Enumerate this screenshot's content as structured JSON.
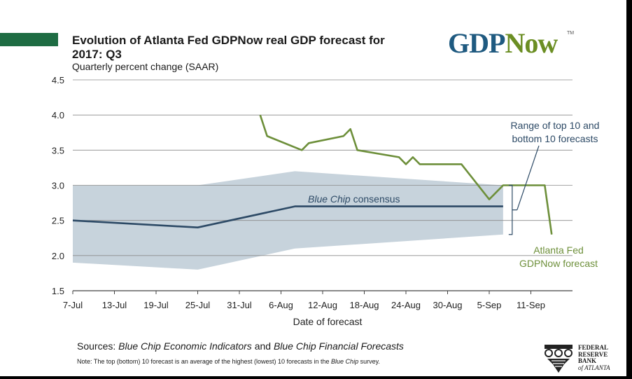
{
  "title": "Evolution of Atlanta Fed GDPNow real GDP forecast for 2017: Q3",
  "subtitle": "Quarterly percent change (SAAR)",
  "logo": {
    "gdp": "GDP",
    "now": "Now",
    "tm": "TM"
  },
  "sources": {
    "prefix": "Sources:",
    "source1": "Blue Chip Economic Indicators",
    "and": "and",
    "source2": "Blue Chip Financial Forecasts"
  },
  "note": {
    "prefix": "Note:  The top (bottom) 10 forecast is an average of the highest (lowest) 10 forecasts in the",
    "italic": "Blue Chip",
    "suffix": "survey."
  },
  "fed_logo": {
    "lines": [
      "FEDERAL",
      "RESERVE",
      "BANK",
      "of ATLANTA"
    ],
    "icon": "eagle-seal-icon"
  },
  "colors": {
    "gdpnow": "#6d8f3a",
    "bluechip": "#2d4a66",
    "range": "#c7d3dc",
    "grid": "#8a8a8a",
    "band": "#1e6c43"
  },
  "chart_data": {
    "type": "line",
    "xlabel": "Date of forecast",
    "ylabel": "",
    "ylim": [
      1.5,
      4.5
    ],
    "yticks": [
      "4.5",
      "4.0",
      "3.5",
      "3.0",
      "2.5",
      "2.0",
      "1.5"
    ],
    "xticks": [
      "7-Jul",
      "13-Jul",
      "19-Jul",
      "25-Jul",
      "31-Jul",
      "6-Aug",
      "12-Aug",
      "18-Aug",
      "24-Aug",
      "30-Aug",
      "5-Sep",
      "11-Sep"
    ],
    "xlim_days": [
      0,
      72
    ],
    "grid": true,
    "series": [
      {
        "name": "Atlanta Fed GDPNow forecast",
        "label_lines": [
          "Atlanta Fed",
          "GDPNow forecast"
        ],
        "x": [
          27,
          28,
          33,
          34,
          39,
          40,
          41,
          47,
          48,
          49,
          50,
          51,
          55,
          56,
          60,
          61,
          62,
          63,
          64,
          68,
          69
        ],
        "y": [
          4.0,
          3.7,
          3.5,
          3.6,
          3.7,
          3.8,
          3.5,
          3.4,
          3.3,
          3.4,
          3.3,
          3.3,
          3.3,
          3.3,
          2.8,
          2.9,
          3.0,
          3.0,
          3.0,
          3.0,
          2.3
        ]
      },
      {
        "name": "Blue Chip consensus",
        "label_italic": "Blue Chip",
        "label_rest": "consensus",
        "x": [
          0,
          18,
          32,
          62
        ],
        "y": [
          2.5,
          2.4,
          2.7,
          2.7
        ]
      }
    ],
    "range": {
      "label_lines": [
        "Range of top 10 and",
        "bottom 10 forecasts"
      ],
      "x": [
        0,
        18,
        32,
        62
      ],
      "top": [
        3.0,
        3.0,
        3.2,
        3.0
      ],
      "bottom": [
        1.9,
        1.8,
        2.1,
        2.3
      ]
    }
  }
}
